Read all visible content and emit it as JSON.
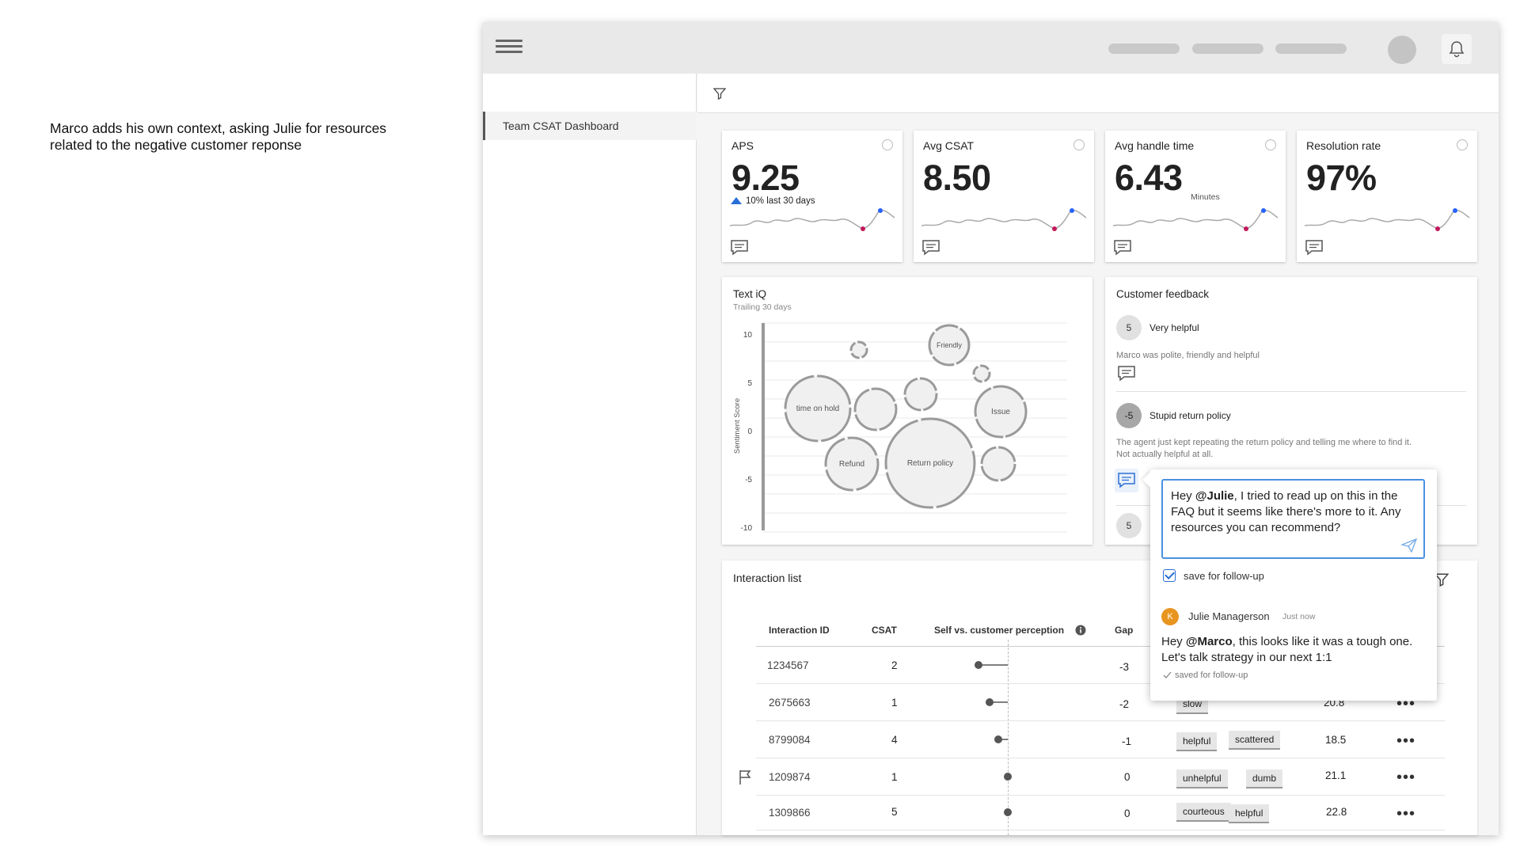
{
  "caption": "Marco adds his own context, asking Julie for resources related to the negative customer reponse",
  "sidebar": {
    "items": [
      {
        "label": "Team CSAT Dashboard"
      }
    ]
  },
  "kpis": [
    {
      "title": "APS",
      "value": "9.25",
      "sub": "10% last 30 days"
    },
    {
      "title": "Avg CSAT",
      "value": "8.50"
    },
    {
      "title": "Avg handle time",
      "value": "6.43",
      "sub": "Minutes"
    },
    {
      "title": "Resolution rate",
      "value": "97%"
    }
  ],
  "text_iq": {
    "title": "Text iQ",
    "subtitle": "Trailing 30 days",
    "ylabel": "Sentiment Score",
    "yticks": [
      "10",
      "5",
      "0",
      "-5",
      "-10"
    ],
    "bubble_labels": {
      "friendly": "Friendly",
      "time_on_hold": "time on hold",
      "issue": "Issue",
      "refund": "Refund",
      "return_policy": "Return policy"
    }
  },
  "customer_feedback": {
    "title": "Customer feedback",
    "items": [
      {
        "score": "5",
        "title": "Very helpful",
        "text": "Marco was polite, friendly and helpful"
      },
      {
        "score": "-5",
        "title": "Stupid return policy",
        "text_line1": "The agent just kept repeating the return policy and telling me where to find it.",
        "text_line2": "Not actually helpful at all."
      },
      {
        "score": "5"
      }
    ]
  },
  "interaction_list": {
    "title": "Interaction list",
    "headers": {
      "id": "Interaction ID",
      "csat": "CSAT",
      "perception": "Self vs. customer perception",
      "gap": "Gap"
    },
    "rows": [
      {
        "id": "1234567",
        "csat": "2",
        "gap": "-3",
        "tags": [],
        "value": ""
      },
      {
        "id": "2675663",
        "csat": "1",
        "gap": "-2",
        "tags": [
          "slow"
        ],
        "value": "20.8"
      },
      {
        "id": "8799084",
        "csat": "4",
        "gap": "-1",
        "tags": [
          "helpful",
          "scattered"
        ],
        "value": "18.5"
      },
      {
        "id": "1209874",
        "csat": "1",
        "gap": "0",
        "tags": [
          "unhelpful",
          "dumb"
        ],
        "value": "21.1"
      },
      {
        "id": "1309866",
        "csat": "5",
        "gap": "0",
        "tags": [
          "courteous",
          "helpful"
        ],
        "value": "22.8"
      }
    ]
  },
  "comment_popup": {
    "message_prefix": "Hey ",
    "message_mention": "@Julie",
    "message_rest": ", I tried to read up on this in the FAQ but it seems like there's more to it. Any resources you can recommend?",
    "save_label": "save for follow-up",
    "reply": {
      "avatar_initial": "K",
      "author": "Julie Managerson",
      "time": "Just now",
      "text_prefix": "Hey ",
      "text_mention": "@Marco",
      "text_rest": ", this looks like it was a tough one. Let's talk strategy in our next 1:1",
      "saved_label": "saved for follow-up"
    }
  },
  "colors": {
    "accent_blue": "#2a6fd6",
    "trend_up": "#2a6fd6",
    "spark_low": "#c2185b",
    "spark_high": "#2962ff",
    "reply_avatar": "#e89520"
  }
}
